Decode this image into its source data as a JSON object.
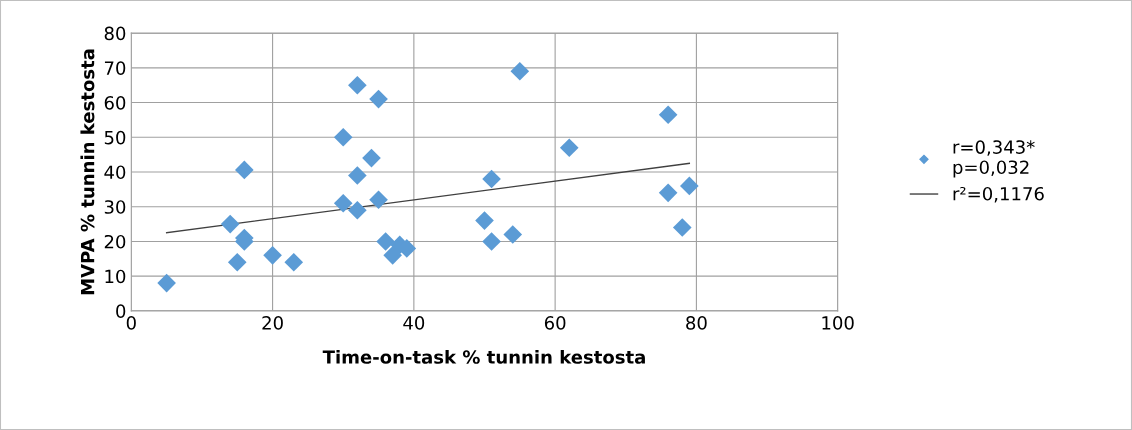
{
  "chart_data": {
    "type": "scatter",
    "xlabel": "Time-on-task % tunnin kestosta",
    "ylabel": "MVPA % tunnin kestosta",
    "xlim": [
      0,
      100
    ],
    "xticks": [
      0,
      20,
      40,
      60,
      80,
      100
    ],
    "ylim": [
      0,
      80
    ],
    "yticks": [
      0,
      10,
      20,
      30,
      40,
      50,
      60,
      70,
      80
    ],
    "grid": true,
    "legend": "right",
    "marker": "diamond",
    "series": [
      {
        "name": "r=0,343*\np=0,032",
        "color": "#5b9bd5",
        "x": [
          5,
          14,
          15,
          16,
          16,
          16,
          20,
          23,
          30,
          30,
          32,
          32,
          32,
          34,
          35,
          35,
          36,
          37,
          38,
          39,
          50,
          51,
          51,
          55,
          54,
          62,
          76,
          76,
          79,
          78
        ],
        "values": [
          8,
          25,
          14,
          21,
          20,
          40.6,
          16,
          14,
          50,
          31,
          65,
          39,
          29,
          44,
          61,
          32,
          20,
          16,
          19,
          18,
          26,
          20,
          38,
          69,
          22,
          47,
          56.5,
          34,
          36,
          24
        ]
      },
      {
        "name": "r²=0,1176",
        "type": "line",
        "color": "#404040",
        "marker": "none",
        "x": [
          5,
          79
        ],
        "values": [
          22.5,
          42.5
        ]
      }
    ]
  }
}
